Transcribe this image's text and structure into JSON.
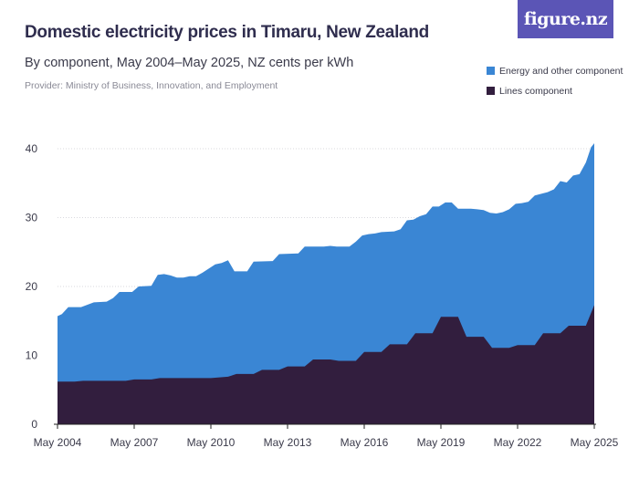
{
  "header": {
    "title": "Domestic electricity prices in Timaru, New Zealand",
    "subtitle": "By component, May 2004–May 2025, NZ cents per kWh",
    "provider": "Provider: Ministry of Business, Innovation, and Employment",
    "logo": "figure.nz"
  },
  "colors": {
    "energy": "#3a86d4",
    "lines": "#321e3e",
    "axis": "#222222"
  },
  "chart_data": {
    "type": "area",
    "stacked": true,
    "x_start": "May 2004",
    "x_end": "May 2025",
    "x_tick_labels": [
      "May 2004",
      "May 2007",
      "May 2010",
      "May 2013",
      "May 2016",
      "May 2019",
      "May 2022",
      "May 2025"
    ],
    "y_ticks": [
      0,
      10,
      20,
      30,
      40
    ],
    "ylim": [
      0,
      42
    ],
    "legend_position": "top-right",
    "series": [
      {
        "name": "Lines component",
        "color": "#321e3e",
        "points": [
          [
            2004.33,
            6.2
          ],
          [
            2005.0,
            6.2
          ],
          [
            2005.33,
            6.3
          ],
          [
            2006.0,
            6.3
          ],
          [
            2006.33,
            6.3
          ],
          [
            2007.0,
            6.3
          ],
          [
            2007.33,
            6.5
          ],
          [
            2008.0,
            6.5
          ],
          [
            2008.33,
            6.7
          ],
          [
            2009.0,
            6.7
          ],
          [
            2009.33,
            6.7
          ],
          [
            2010.0,
            6.7
          ],
          [
            2010.33,
            6.7
          ],
          [
            2011.0,
            6.9
          ],
          [
            2011.33,
            7.3
          ],
          [
            2012.0,
            7.3
          ],
          [
            2012.33,
            7.9
          ],
          [
            2013.0,
            7.9
          ],
          [
            2013.33,
            8.4
          ],
          [
            2014.0,
            8.4
          ],
          [
            2014.33,
            9.4
          ],
          [
            2015.0,
            9.4
          ],
          [
            2015.33,
            9.2
          ],
          [
            2016.0,
            9.2
          ],
          [
            2016.33,
            10.5
          ],
          [
            2017.0,
            10.5
          ],
          [
            2017.33,
            11.6
          ],
          [
            2018.0,
            11.6
          ],
          [
            2018.33,
            13.2
          ],
          [
            2019.0,
            13.2
          ],
          [
            2019.33,
            15.6
          ],
          [
            2020.0,
            15.6
          ],
          [
            2020.33,
            12.7
          ],
          [
            2021.0,
            12.7
          ],
          [
            2021.33,
            11.1
          ],
          [
            2022.0,
            11.1
          ],
          [
            2022.33,
            11.5
          ],
          [
            2023.0,
            11.5
          ],
          [
            2023.33,
            13.2
          ],
          [
            2024.0,
            13.2
          ],
          [
            2024.33,
            14.3
          ],
          [
            2025.0,
            14.3
          ],
          [
            2025.33,
            17.3
          ]
        ]
      },
      {
        "name": "Energy and other component",
        "color": "#3a86d4",
        "points": [
          [
            2004.33,
            15.7
          ],
          [
            2004.5,
            16.0
          ],
          [
            2004.75,
            17.0
          ],
          [
            2005.25,
            17.0
          ],
          [
            2005.75,
            17.7
          ],
          [
            2006.25,
            17.8
          ],
          [
            2006.5,
            18.3
          ],
          [
            2006.75,
            19.2
          ],
          [
            2007.25,
            19.2
          ],
          [
            2007.5,
            20.0
          ],
          [
            2008.0,
            20.1
          ],
          [
            2008.25,
            21.7
          ],
          [
            2008.5,
            21.8
          ],
          [
            2008.75,
            21.6
          ],
          [
            2009.0,
            21.3
          ],
          [
            2009.25,
            21.3
          ],
          [
            2009.5,
            21.5
          ],
          [
            2009.75,
            21.5
          ],
          [
            2010.0,
            22.0
          ],
          [
            2010.33,
            22.8
          ],
          [
            2010.5,
            23.2
          ],
          [
            2010.75,
            23.4
          ],
          [
            2011.0,
            23.8
          ],
          [
            2011.25,
            22.2
          ],
          [
            2011.75,
            22.2
          ],
          [
            2012.0,
            23.6
          ],
          [
            2012.75,
            23.7
          ],
          [
            2013.0,
            24.7
          ],
          [
            2013.75,
            24.8
          ],
          [
            2014.0,
            25.8
          ],
          [
            2014.75,
            25.8
          ],
          [
            2015.0,
            25.9
          ],
          [
            2015.25,
            25.8
          ],
          [
            2015.75,
            25.8
          ],
          [
            2016.0,
            26.5
          ],
          [
            2016.25,
            27.4
          ],
          [
            2016.5,
            27.6
          ],
          [
            2016.75,
            27.7
          ],
          [
            2017.0,
            27.9
          ],
          [
            2017.5,
            28.0
          ],
          [
            2017.75,
            28.3
          ],
          [
            2018.0,
            29.6
          ],
          [
            2018.25,
            29.7
          ],
          [
            2018.5,
            30.2
          ],
          [
            2018.75,
            30.5
          ],
          [
            2019.0,
            31.6
          ],
          [
            2019.25,
            31.6
          ],
          [
            2019.5,
            32.2
          ],
          [
            2019.75,
            32.2
          ],
          [
            2020.0,
            31.3
          ],
          [
            2020.5,
            31.3
          ],
          [
            2020.75,
            31.2
          ],
          [
            2021.0,
            31.1
          ],
          [
            2021.25,
            30.7
          ],
          [
            2021.5,
            30.6
          ],
          [
            2021.75,
            30.8
          ],
          [
            2022.0,
            31.2
          ],
          [
            2022.25,
            32.0
          ],
          [
            2022.5,
            32.1
          ],
          [
            2022.75,
            32.3
          ],
          [
            2023.0,
            33.2
          ],
          [
            2023.5,
            33.7
          ],
          [
            2023.75,
            34.1
          ],
          [
            2024.0,
            35.3
          ],
          [
            2024.25,
            35.1
          ],
          [
            2024.5,
            36.1
          ],
          [
            2024.75,
            36.3
          ],
          [
            2025.0,
            38.0
          ],
          [
            2025.2,
            40.2
          ],
          [
            2025.33,
            40.8
          ]
        ]
      }
    ]
  }
}
